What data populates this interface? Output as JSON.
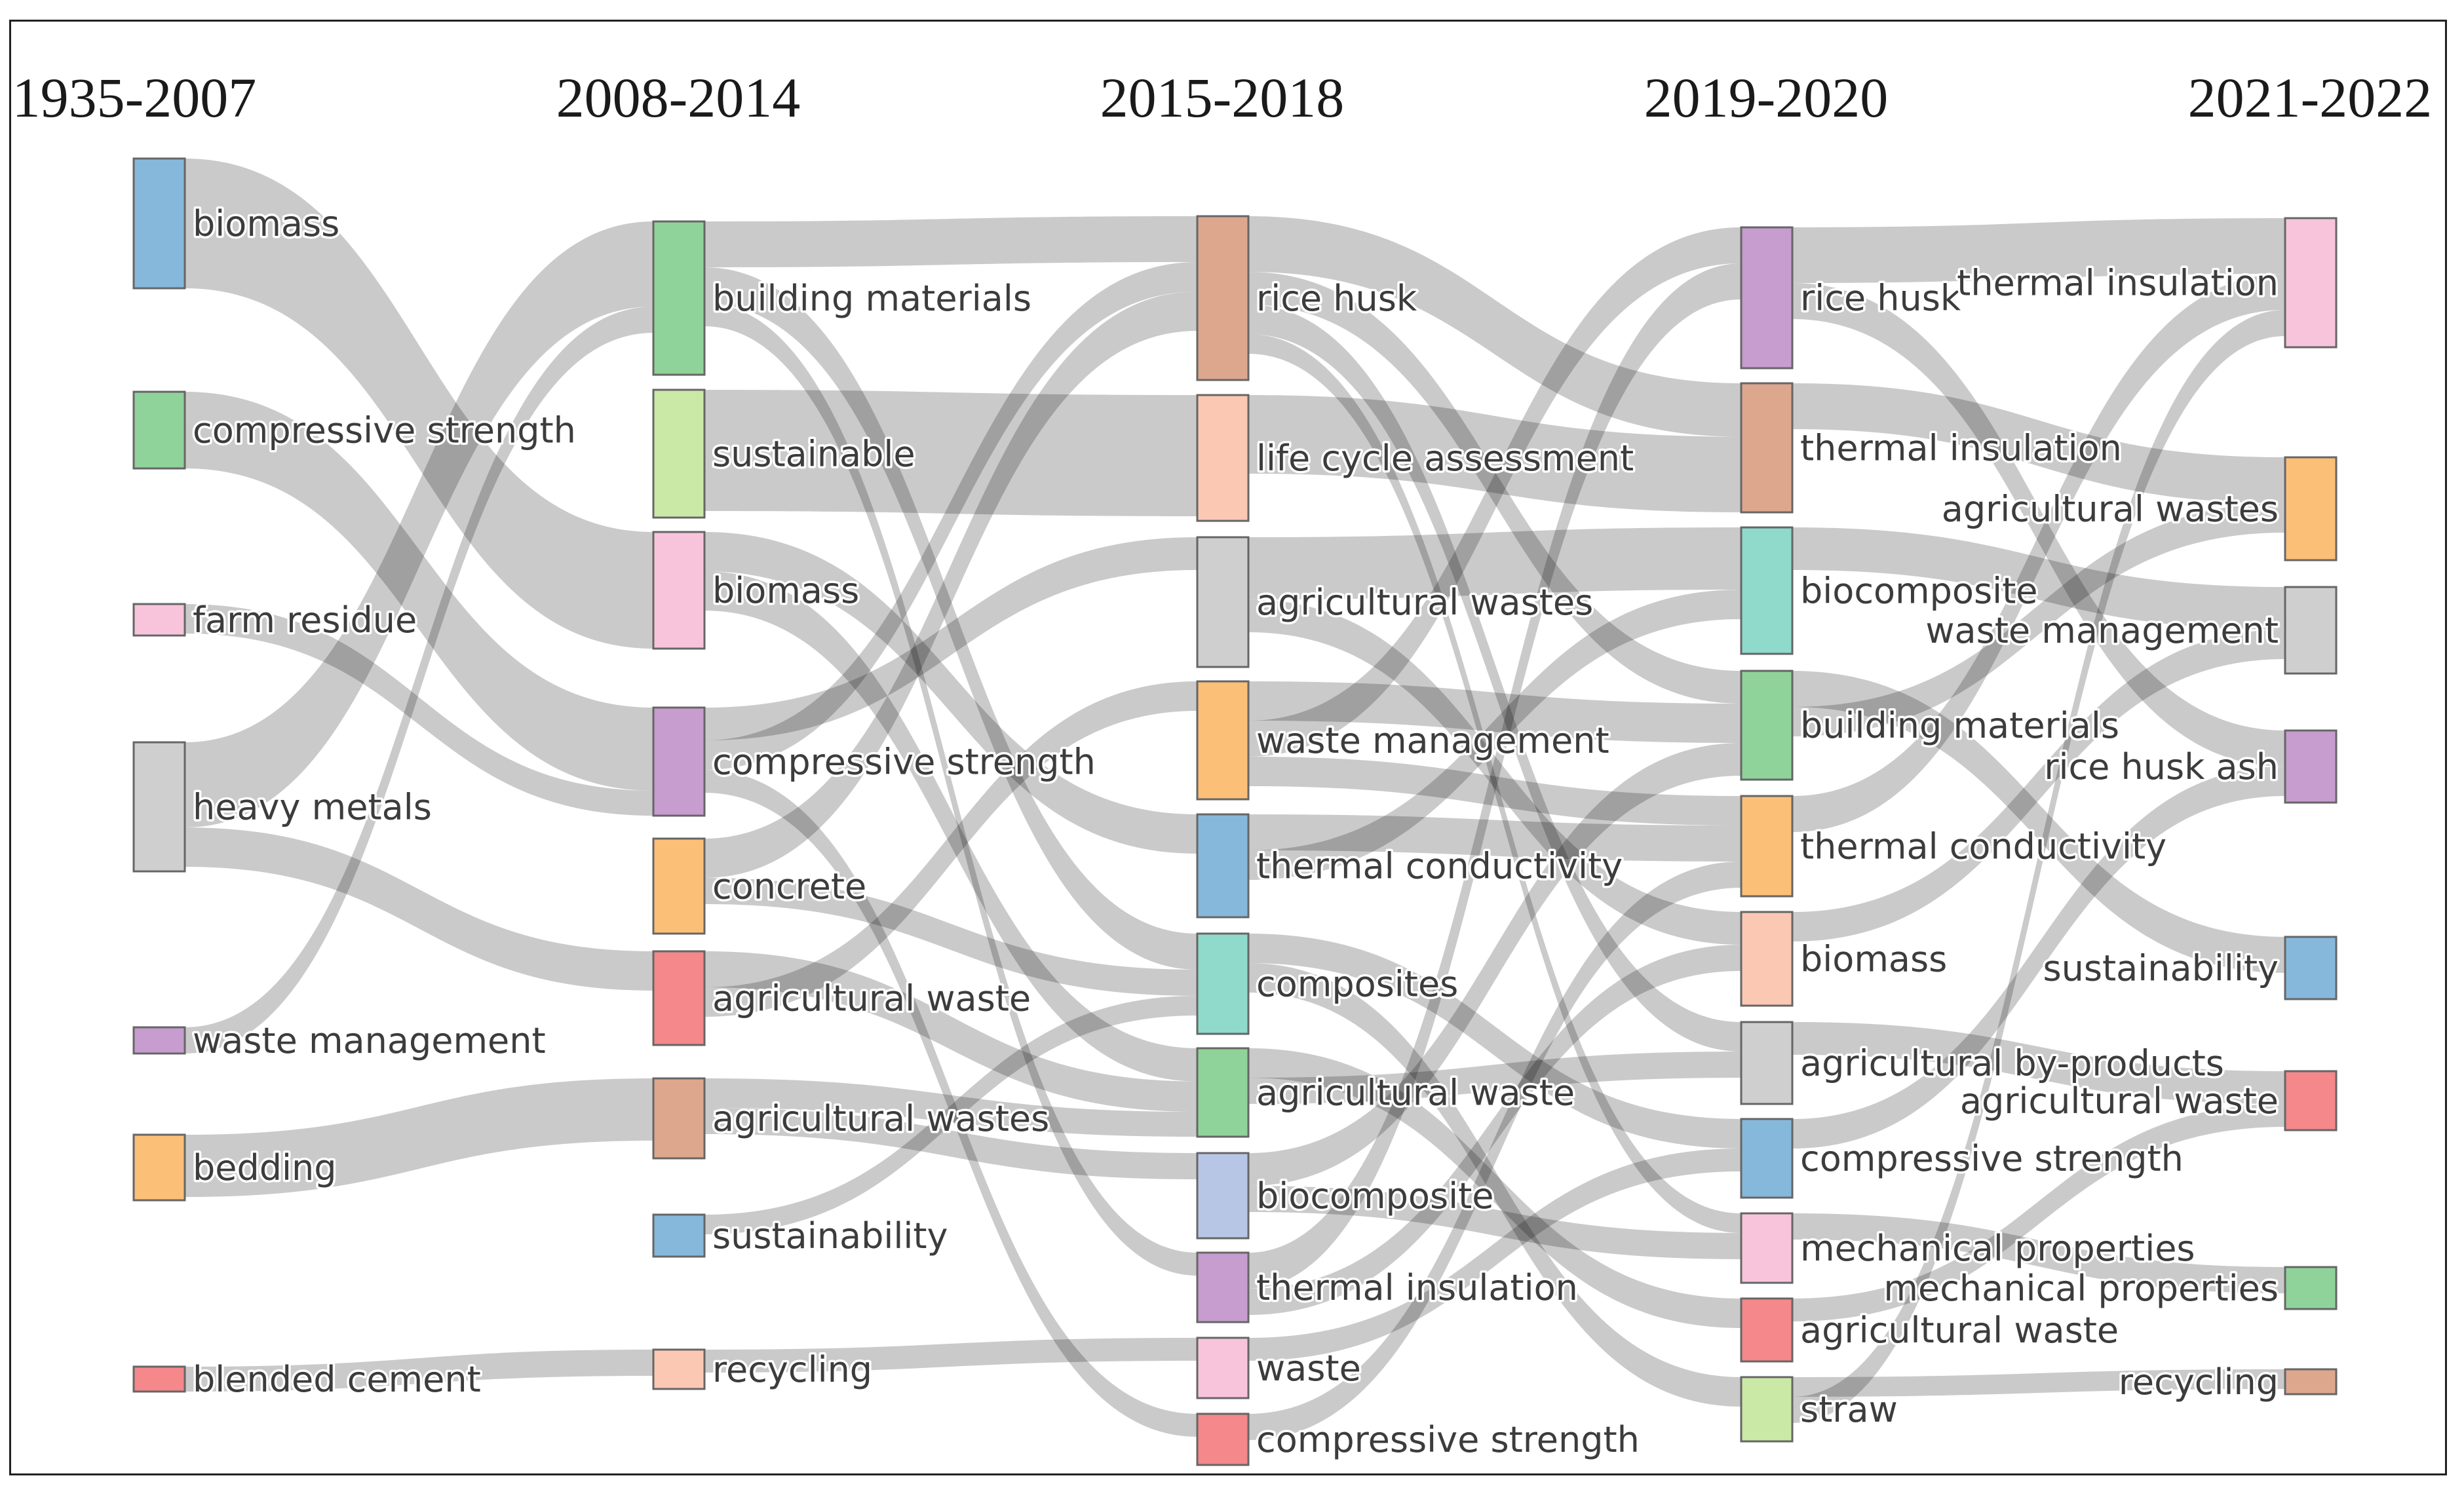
{
  "periods": [
    "1935-2007",
    "2008-2014",
    "2015-2018",
    "2019-2020",
    "2021-2022"
  ],
  "colors": {
    "blue": "#86b8dc",
    "green": "#8fd39a",
    "pink": "#f8c4dc",
    "gray": "#cfcfcf",
    "purple": "#c79ccf",
    "orange": "#fbbf78",
    "red": "#f4888a",
    "salmon": "#dda78e",
    "lightgreen": "#cbe9a6",
    "teal": "#8fdacb",
    "periwinkle": "#b8c6e6",
    "peach": "#fbc8b4",
    "link": "#7a7a7a"
  },
  "columns": [
    [
      {
        "label": "biomass",
        "color": "blue"
      },
      {
        "label": "compressive strength",
        "color": "green"
      },
      {
        "label": "farm residue",
        "color": "pink"
      },
      {
        "label": "heavy metals",
        "color": "gray"
      },
      {
        "label": "waste management",
        "color": "purple"
      },
      {
        "label": "bedding",
        "color": "orange"
      },
      {
        "label": "blended cement",
        "color": "red"
      }
    ],
    [
      {
        "label": "building materials",
        "color": "green"
      },
      {
        "label": "sustainable",
        "color": "lightgreen"
      },
      {
        "label": "biomass",
        "color": "pink"
      },
      {
        "label": "compressive strength",
        "color": "purple"
      },
      {
        "label": "concrete",
        "color": "orange"
      },
      {
        "label": "agricultural waste",
        "color": "red"
      },
      {
        "label": "agricultural wastes",
        "color": "salmon"
      },
      {
        "label": "sustainability",
        "color": "blue"
      },
      {
        "label": "recycling",
        "color": "peach"
      }
    ],
    [
      {
        "label": "rice husk",
        "color": "salmon"
      },
      {
        "label": "life cycle assessment",
        "color": "peach"
      },
      {
        "label": "agricultural wastes",
        "color": "gray"
      },
      {
        "label": "waste management",
        "color": "orange"
      },
      {
        "label": "thermal conductivity",
        "color": "blue"
      },
      {
        "label": "composites",
        "color": "teal"
      },
      {
        "label": "agricultural waste",
        "color": "green"
      },
      {
        "label": "biocomposite",
        "color": "periwinkle"
      },
      {
        "label": "thermal insulation",
        "color": "purple"
      },
      {
        "label": "waste",
        "color": "pink"
      },
      {
        "label": "compressive strength",
        "color": "red"
      }
    ],
    [
      {
        "label": "rice husk",
        "color": "purple"
      },
      {
        "label": "thermal insulation",
        "color": "salmon"
      },
      {
        "label": "biocomposite",
        "color": "teal"
      },
      {
        "label": "building materials",
        "color": "green"
      },
      {
        "label": "thermal conductivity",
        "color": "orange"
      },
      {
        "label": "biomass",
        "color": "peach"
      },
      {
        "label": "agricultural by-products",
        "color": "gray"
      },
      {
        "label": "compressive strength",
        "color": "blue"
      },
      {
        "label": "mechanical properties",
        "color": "pink"
      },
      {
        "label": "agricultural waste",
        "color": "red"
      },
      {
        "label": "straw",
        "color": "lightgreen"
      }
    ],
    [
      {
        "label": "thermal insulation",
        "color": "pink"
      },
      {
        "label": "agricultural wastes",
        "color": "orange"
      },
      {
        "label": "waste management",
        "color": "gray"
      },
      {
        "label": "rice husk ash",
        "color": "purple"
      },
      {
        "label": "sustainability",
        "color": "blue"
      },
      {
        "label": "agricultural waste",
        "color": "red"
      },
      {
        "label": "mechanical properties",
        "color": "green"
      },
      {
        "label": "recycling",
        "color": "salmon"
      }
    ]
  ]
}
